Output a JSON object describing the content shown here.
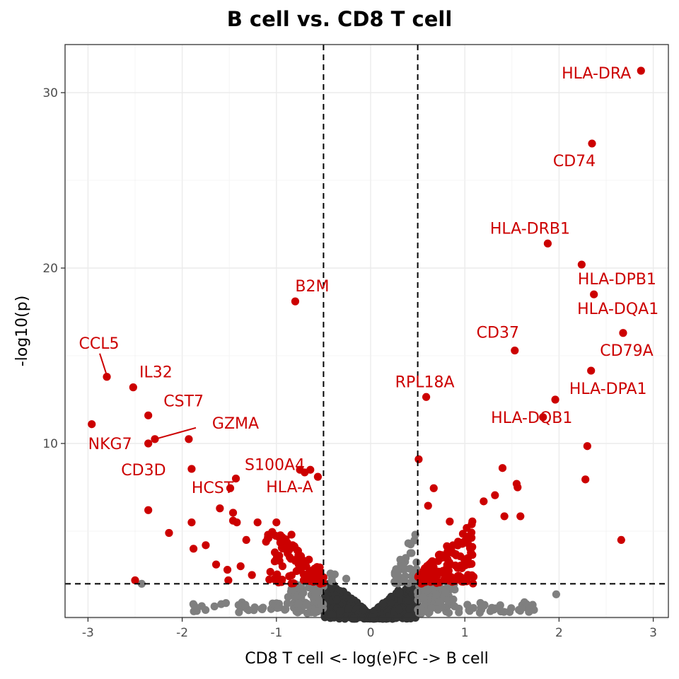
{
  "chart_data": {
    "type": "scatter",
    "subtype": "volcano",
    "title": "B cell vs. CD8 T cell",
    "xlabel": "CD8 T cell <- log(e)FC -> B cell",
    "ylabel": "-log10(p)",
    "xlim": [
      -3.2,
      3.2
    ],
    "ylim": [
      0,
      32.6
    ],
    "x_ticks": [
      -3,
      -2,
      -1,
      0,
      1,
      2,
      3
    ],
    "x_tick_labels": [
      "-3",
      "-2",
      "-1",
      "0",
      "1",
      "2",
      "3"
    ],
    "y_ticks": [
      10,
      20,
      30
    ],
    "y_tick_labels": [
      "10",
      "20",
      "30"
    ],
    "grid": true,
    "thresholds": {
      "logfc": [
        -0.5,
        0.5
      ],
      "neglog10p": 2.0
    },
    "colors": {
      "significant": "#cc0000",
      "fc_only": "#7f7f7f",
      "not_significant": "#333333",
      "label": "#cc0000"
    },
    "labeled_genes": [
      {
        "gene": "HLA-DRA",
        "x": 2.87,
        "y": 31.25
      },
      {
        "gene": "CD74",
        "x": 2.35,
        "y": 27.1
      },
      {
        "gene": "HLA-DRB1",
        "x": 1.88,
        "y": 21.4
      },
      {
        "gene": "HLA-DPB1",
        "x": 2.24,
        "y": 20.2
      },
      {
        "gene": "HLA-DQA1",
        "x": 2.37,
        "y": 18.5
      },
      {
        "gene": "CD79A",
        "x": 2.68,
        "y": 16.3
      },
      {
        "gene": "CD37",
        "x": 1.53,
        "y": 15.3
      },
      {
        "gene": "HLA-DPA1",
        "x": 2.34,
        "y": 14.15
      },
      {
        "gene": "RPL18A",
        "x": 0.59,
        "y": 12.65
      },
      {
        "gene": "HLA-DQB1",
        "x": 1.83,
        "y": 11.5
      },
      {
        "gene": "B2M",
        "x": -0.8,
        "y": 18.1
      },
      {
        "gene": "CCL5",
        "x": -2.8,
        "y": 13.8
      },
      {
        "gene": "IL32",
        "x": -2.52,
        "y": 13.2
      },
      {
        "gene": "CST7",
        "x": -2.36,
        "y": 11.6
      },
      {
        "gene": "NKG7",
        "x": -2.36,
        "y": 10.0
      },
      {
        "gene": "GZMA",
        "x": -2.29,
        "y": 10.25
      },
      {
        "gene": "CD3D",
        "x": -1.9,
        "y": 8.55
      },
      {
        "gene": "S100A4",
        "x": -1.43,
        "y": 8.0
      },
      {
        "gene": "HCST",
        "x": -1.49,
        "y": 7.45
      },
      {
        "gene": "HLA-A",
        "x": -0.56,
        "y": 8.1
      }
    ],
    "other_significant_points": [
      [
        -2.96,
        11.1
      ],
      [
        -1.93,
        10.25
      ],
      [
        -0.75,
        8.5
      ],
      [
        -0.7,
        8.35
      ],
      [
        -0.64,
        8.5
      ],
      [
        1.96,
        12.5
      ],
      [
        2.3,
        9.85
      ],
      [
        2.28,
        7.95
      ],
      [
        2.66,
        4.5
      ],
      [
        1.4,
        8.6
      ],
      [
        1.55,
        7.7
      ],
      [
        1.56,
        7.5
      ],
      [
        0.51,
        9.1
      ],
      [
        0.67,
        7.45
      ],
      [
        0.61,
        6.45
      ],
      [
        1.32,
        7.05
      ],
      [
        1.2,
        6.7
      ],
      [
        1.42,
        5.85
      ],
      [
        1.59,
        5.85
      ],
      [
        0.84,
        5.55
      ],
      [
        -2.36,
        6.2
      ],
      [
        -2.14,
        4.9
      ],
      [
        -1.9,
        5.5
      ],
      [
        -1.88,
        4.0
      ],
      [
        -1.75,
        4.2
      ],
      [
        -1.64,
        3.1
      ],
      [
        -1.51,
        2.2
      ],
      [
        -1.52,
        2.8
      ],
      [
        -1.42,
        5.5
      ],
      [
        -1.32,
        4.5
      ],
      [
        -1.2,
        5.5
      ],
      [
        -1.11,
        4.4
      ],
      [
        -1.0,
        5.5
      ],
      [
        -0.97,
        3.6
      ],
      [
        -0.84,
        4.8
      ],
      [
        -2.5,
        2.2
      ],
      [
        -1.6,
        6.3
      ],
      [
        -1.46,
        5.6
      ],
      [
        -1.38,
        3.0
      ],
      [
        -1.26,
        2.5
      ],
      [
        -1.46,
        6.05
      ]
    ],
    "point_groups": {
      "significant_cluster_left": {
        "x_range": [
          -1.1,
          -0.5
        ],
        "y_range": [
          2.0,
          5.0
        ],
        "n": 90
      },
      "significant_cluster_right": {
        "x_range": [
          0.5,
          1.1
        ],
        "y_range": [
          2.0,
          5.0
        ],
        "n": 110
      },
      "fc_only_low": {
        "x_range": [
          -1.9,
          1.75
        ],
        "y_range": [
          0.3,
          2.0
        ],
        "n": 220
      },
      "pvalue_only_center": {
        "x_range": [
          -0.5,
          0.5
        ],
        "y_range": [
          2.0,
          6.0
        ],
        "n": 50
      },
      "not_significant_center": {
        "x_range": [
          -0.5,
          0.5
        ],
        "y_range": [
          0.0,
          2.0
        ],
        "n": 600
      }
    },
    "extra_points_gray": [
      [
        -2.43,
        2.0
      ],
      [
        1.97,
        1.4
      ],
      [
        1.72,
        0.8
      ],
      [
        1.6,
        0.6
      ]
    ]
  }
}
